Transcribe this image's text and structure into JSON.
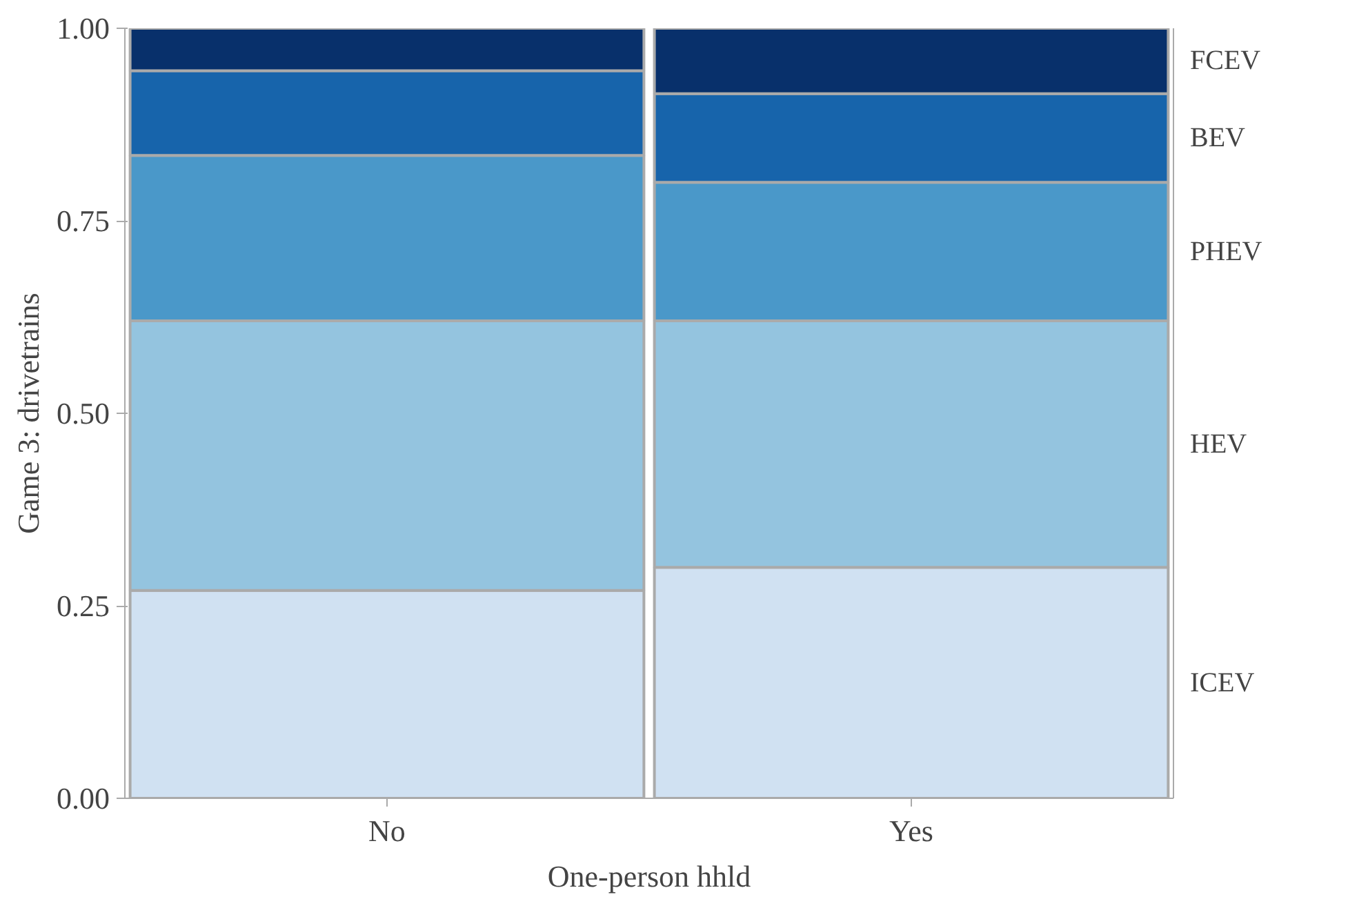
{
  "chart_data": {
    "type": "bar",
    "stacked": true,
    "xlabel": "One-person hhld",
    "ylabel": "Game 3: drivetrains",
    "categories": [
      "No",
      "Yes"
    ],
    "series": [
      {
        "name": "ICEV",
        "color": "#d0e1f2",
        "values": [
          0.27,
          0.3
        ]
      },
      {
        "name": "HEV",
        "color": "#94c4df",
        "values": [
          0.35,
          0.32
        ]
      },
      {
        "name": "PHEV",
        "color": "#4a98c9",
        "values": [
          0.215,
          0.18
        ]
      },
      {
        "name": "BEV",
        "color": "#1764ab",
        "values": [
          0.11,
          0.115
        ]
      },
      {
        "name": "FCEV",
        "color": "#08306b",
        "values": [
          0.055,
          0.085
        ]
      }
    ],
    "ylim": [
      0,
      1
    ],
    "yticks": [
      {
        "value": 0,
        "label": "0.00"
      },
      {
        "value": 0.25,
        "label": "0.25"
      },
      {
        "value": 0.5,
        "label": "0.50"
      },
      {
        "value": 0.75,
        "label": "0.75"
      },
      {
        "value": 1,
        "label": "1.00"
      }
    ],
    "grid": false,
    "legend": false
  }
}
